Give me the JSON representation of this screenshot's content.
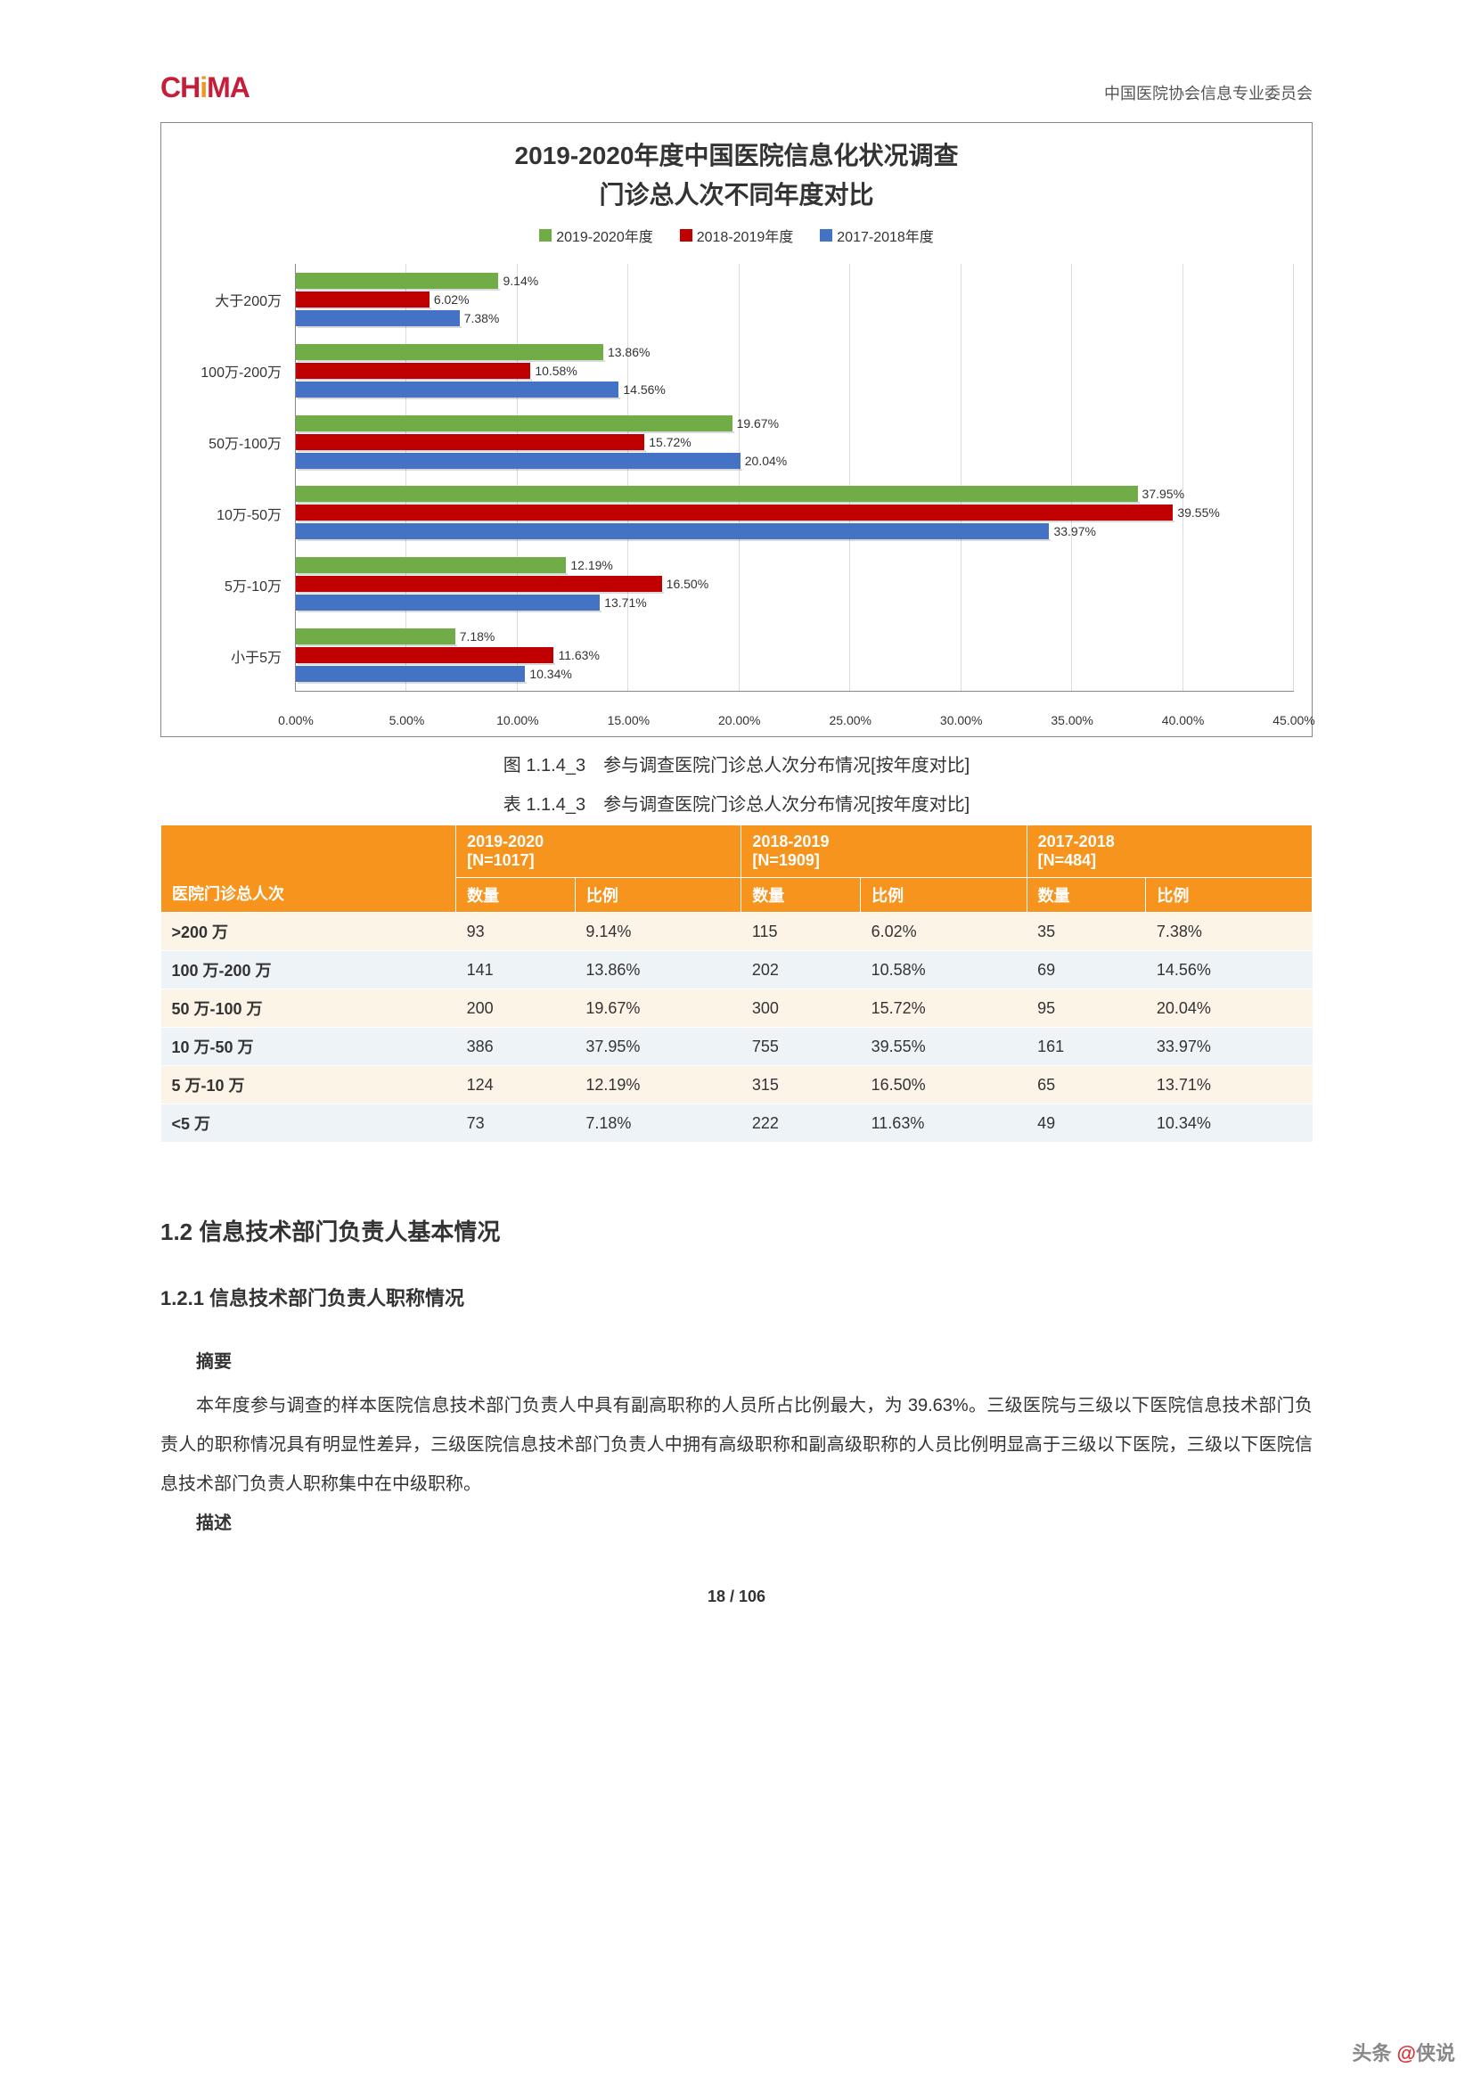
{
  "header": {
    "logo_text": "CHiMA",
    "right_text": "中国医院协会信息专业委员会"
  },
  "chart": {
    "type": "horizontal_bar_grouped",
    "title_line1": "2019-2020年度中国医院信息化状况调查",
    "title_line2": "门诊总人次不同年度对比",
    "legend": [
      {
        "label": "2019-2020年度",
        "color": "#70ad47"
      },
      {
        "label": "2018-2019年度",
        "color": "#c00000"
      },
      {
        "label": "2017-2018年度",
        "color": "#4472c4"
      }
    ],
    "categories": [
      "大于200万",
      "100万-200万",
      "50万-100万",
      "10万-50万",
      "5万-10万",
      "小于5万"
    ],
    "series": {
      "2019-2020": [
        9.14,
        13.86,
        19.67,
        37.95,
        12.19,
        7.18
      ],
      "2018-2019": [
        6.02,
        10.58,
        15.72,
        39.55,
        16.5,
        11.63
      ],
      "2017-2018": [
        7.38,
        14.56,
        20.04,
        33.97,
        13.71,
        10.34
      ]
    },
    "x_min": 0.0,
    "x_max": 45.0,
    "x_tick_step": 5.0,
    "x_tick_format": "percent_2dp",
    "bar_label_format": "percent_2dp",
    "grid_color": "#dddddd",
    "axis_color": "#888888",
    "title_fontsize": 28,
    "label_fontsize": 16,
    "tick_fontsize": 14,
    "background_color": "#ffffff"
  },
  "figure_caption": "图 1.1.4_3　参与调查医院门诊总人次分布情况[按年度对比]",
  "table_caption": "表 1.1.4_3　参与调查医院门诊总人次分布情况[按年度对比]",
  "table": {
    "header_bg": "#f7941d",
    "header_fg": "#ffffff",
    "row_odd_bg": "#fdf4e8",
    "row_even_bg": "#eef3f8",
    "col1_header": "医院门诊总人次",
    "groups": [
      {
        "title": "2019-2020",
        "sub": "[N=1017]"
      },
      {
        "title": "2018-2019",
        "sub": "[N=1909]"
      },
      {
        "title": "2017-2018",
        "sub": "[N=484]"
      }
    ],
    "subcols": [
      "数量",
      "比例"
    ],
    "rows": [
      {
        "label": ">200 万",
        "cells": [
          "93",
          "9.14%",
          "115",
          "6.02%",
          "35",
          "7.38%"
        ]
      },
      {
        "label": "100 万-200 万",
        "cells": [
          "141",
          "13.86%",
          "202",
          "10.58%",
          "69",
          "14.56%"
        ]
      },
      {
        "label": "50 万-100 万",
        "cells": [
          "200",
          "19.67%",
          "300",
          "15.72%",
          "95",
          "20.04%"
        ]
      },
      {
        "label": "10 万-50 万",
        "cells": [
          "386",
          "37.95%",
          "755",
          "39.55%",
          "161",
          "33.97%"
        ]
      },
      {
        "label": "5 万-10 万",
        "cells": [
          "124",
          "12.19%",
          "315",
          "16.50%",
          "65",
          "13.71%"
        ]
      },
      {
        "label": "<5 万",
        "cells": [
          "73",
          "7.18%",
          "222",
          "11.63%",
          "49",
          "10.34%"
        ]
      }
    ]
  },
  "section_heading": "1.2  信息技术部门负责人基本情况",
  "subsection_heading": "1.2.1  信息技术部门负责人职称情况",
  "abstract_label": "摘要",
  "body_text": "本年度参与调查的样本医院信息技术部门负责人中具有副高职称的人员所占比例最大，为 39.63%。三级医院与三级以下医院信息技术部门负责人的职称情况具有明显性差异，三级医院信息技术部门负责人中拥有高级职称和副高级职称的人员比例明显高于三级以下医院，三级以下医院信息技术部门负责人职称集中在中级职称。",
  "desc_label": "描述",
  "page_footer": "18  /  106",
  "watermark": {
    "prefix": "头条 ",
    "at": "@",
    "name": "侠说"
  }
}
